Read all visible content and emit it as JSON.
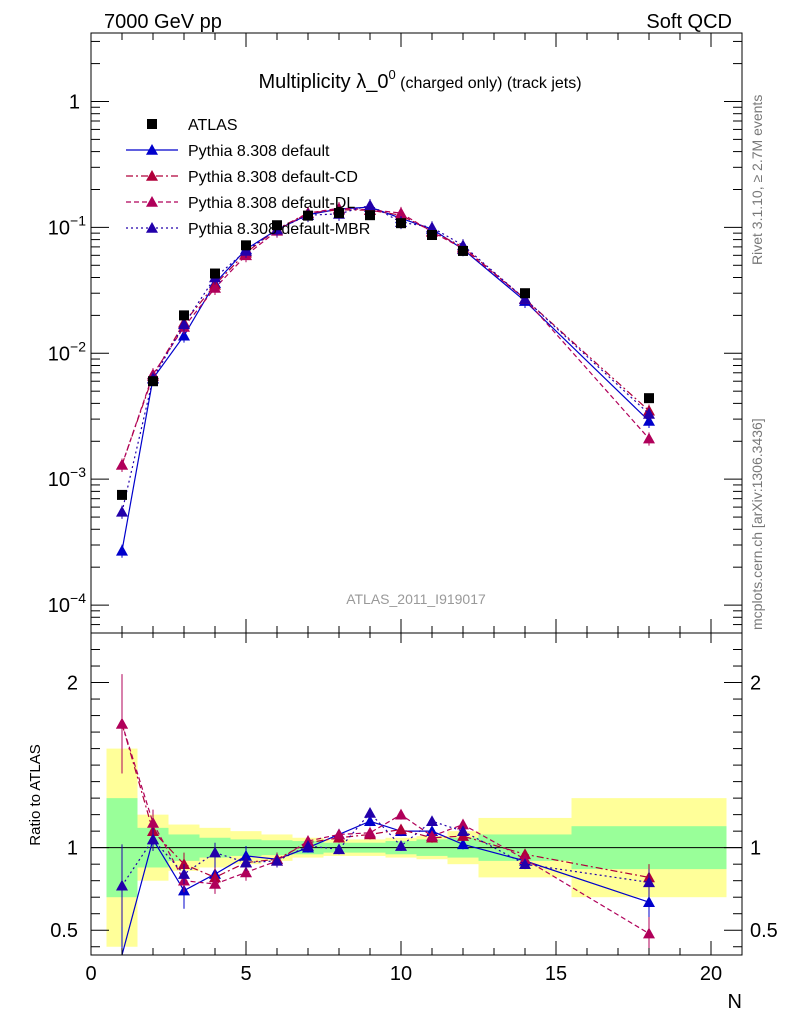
{
  "header": {
    "left": "7000 GeV pp",
    "right": "Soft QCD"
  },
  "side_labels": {
    "top": "Rivet 3.1.10, ≥ 2.7M events",
    "bottom": "mcplots.cern.ch [arXiv:1306.3436]"
  },
  "chart_data": {
    "type": "line",
    "title_main": "Multiplicity λ_0",
    "title_sup": "0",
    "title_rest": " (charged only) (track jets)",
    "watermark": "ATLAS_2011_I919017",
    "xlabel": "N",
    "ratio_ylabel": "Ratio to ATLAS",
    "xlim": [
      0,
      21
    ],
    "ylim": [
      6e-05,
      3.5
    ],
    "yscale": "log",
    "ratio_ylim": [
      0.35,
      2.3
    ],
    "x_ticks": [
      0,
      5,
      10,
      15,
      20
    ],
    "x_tick_labels": [
      "0",
      "5",
      "10",
      "15",
      "20"
    ],
    "y_ticks": [
      1,
      0.1,
      0.01,
      0.001,
      0.0001
    ],
    "y_tick_labels": [
      {
        "base": "1",
        "exp": ""
      },
      {
        "base": "10",
        "exp": "−1"
      },
      {
        "base": "10",
        "exp": "−2"
      },
      {
        "base": "10",
        "exp": "−3"
      },
      {
        "base": "10",
        "exp": "−4"
      }
    ],
    "ratio_y_ticks": [
      0.5,
      1,
      2
    ],
    "ratio_y_tick_labels": [
      "0.5",
      "1",
      "2"
    ],
    "bins": [
      [
        0.5,
        1.5
      ],
      [
        1.5,
        2.5
      ],
      [
        2.5,
        3.5
      ],
      [
        3.5,
        4.5
      ],
      [
        4.5,
        5.5
      ],
      [
        5.5,
        6.5
      ],
      [
        6.5,
        7.5
      ],
      [
        7.5,
        8.5
      ],
      [
        8.5,
        9.5
      ],
      [
        9.5,
        10.5
      ],
      [
        10.5,
        11.5
      ],
      [
        11.5,
        12.5
      ],
      [
        12.5,
        15.5
      ],
      [
        15.5,
        20.5
      ]
    ],
    "x": [
      1,
      2,
      3,
      4,
      5,
      6,
      7,
      8,
      9,
      10,
      11,
      12,
      14,
      18
    ],
    "data": {
      "name": "ATLAS",
      "color": "#000000",
      "values": [
        0.00075,
        0.006,
        0.02,
        0.043,
        0.072,
        0.104,
        0.124,
        0.13,
        0.125,
        0.108,
        0.087,
        0.065,
        0.03,
        0.0044
      ],
      "band_green": [
        0.3,
        0.12,
        0.08,
        0.06,
        0.05,
        0.045,
        0.04,
        0.03,
        0.03,
        0.04,
        0.05,
        0.06,
        0.08,
        0.13
      ],
      "band_yellow": [
        0.6,
        0.2,
        0.14,
        0.12,
        0.1,
        0.08,
        0.06,
        0.05,
        0.05,
        0.06,
        0.07,
        0.1,
        0.18,
        0.3
      ]
    },
    "series": [
      {
        "name": "Pythia 8.308 default",
        "color": "#0000cc",
        "dash": "",
        "values": [
          0.00027,
          0.0063,
          0.0138,
          0.036,
          0.067,
          0.096,
          0.126,
          0.14,
          0.145,
          0.118,
          0.097,
          0.067,
          0.026,
          0.0029
        ],
        "ratio": [
          0.33,
          1.05,
          0.74,
          0.84,
          0.95,
          0.93,
          1.0,
          1.08,
          1.16,
          1.1,
          1.1,
          1.02,
          0.92,
          0.67
        ],
        "ratio_err": [
          0.25,
          0.05,
          0.11,
          0.07,
          0.06,
          0.04,
          0.03,
          0.03,
          0.03,
          0.03,
          0.03,
          0.03,
          0.03,
          0.1
        ]
      },
      {
        "name": "Pythia 8.308 default-CD",
        "color": "#b0003a",
        "dash": "7,3,2,3",
        "values": [
          0.0013,
          0.0066,
          0.0175,
          0.035,
          0.063,
          0.097,
          0.13,
          0.138,
          0.137,
          0.125,
          0.093,
          0.07,
          0.027,
          0.0035
        ],
        "ratio": [
          1.75,
          1.1,
          0.9,
          0.82,
          0.91,
          0.93,
          1.03,
          1.06,
          1.08,
          1.11,
          1.06,
          1.07,
          0.96,
          0.82
        ],
        "ratio_err": [
          0.3,
          0.08,
          0.07,
          0.06,
          0.05,
          0.04,
          0.03,
          0.03,
          0.03,
          0.03,
          0.03,
          0.03,
          0.03,
          0.08
        ]
      },
      {
        "name": "Pythia 8.308 default-DL",
        "color": "#b0005a",
        "dash": "5,3",
        "values": [
          0.0013,
          0.0068,
          0.0162,
          0.033,
          0.06,
          0.094,
          0.13,
          0.142,
          0.138,
          0.13,
          0.092,
          0.068,
          0.027,
          0.0021
        ],
        "ratio": [
          1.75,
          1.15,
          0.8,
          0.78,
          0.85,
          0.92,
          1.04,
          1.08,
          1.09,
          1.2,
          1.07,
          1.14,
          0.93,
          0.48
        ],
        "ratio_err": [
          0.3,
          0.08,
          0.07,
          0.06,
          0.05,
          0.04,
          0.03,
          0.03,
          0.03,
          0.03,
          0.03,
          0.03,
          0.03,
          0.1
        ]
      },
      {
        "name": "Pythia 8.308 default-MBR",
        "color": "#2200aa",
        "dash": "2,3",
        "values": [
          0.00055,
          0.0063,
          0.017,
          0.04,
          0.065,
          0.096,
          0.125,
          0.128,
          0.15,
          0.11,
          0.1,
          0.072,
          0.027,
          0.0033
        ],
        "ratio": [
          0.77,
          1.05,
          0.84,
          0.97,
          0.91,
          0.92,
          1.01,
          0.99,
          1.21,
          1.01,
          1.16,
          1.1,
          0.9,
          0.79
        ],
        "ratio_err": [
          0.25,
          0.07,
          0.06,
          0.06,
          0.05,
          0.04,
          0.03,
          0.03,
          0.03,
          0.03,
          0.03,
          0.03,
          0.03,
          0.08
        ]
      }
    ],
    "legend_position": "top-left",
    "grid": false
  }
}
